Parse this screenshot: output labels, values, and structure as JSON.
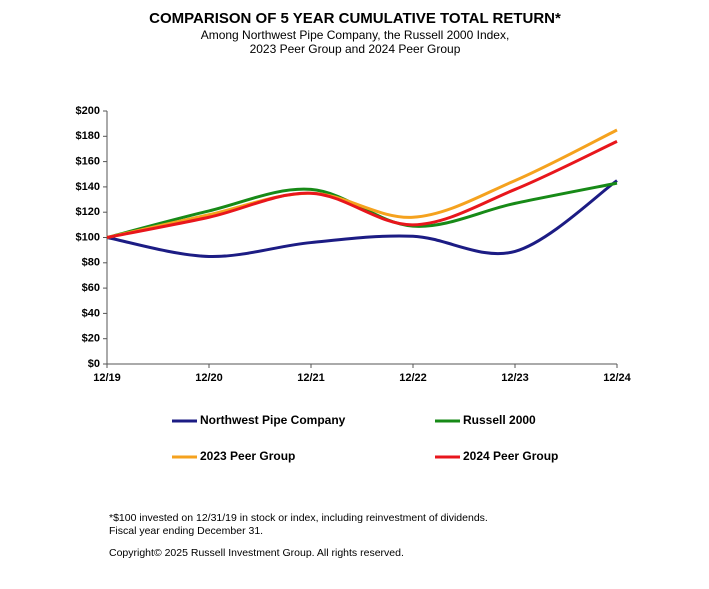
{
  "chart_data": {
    "type": "line",
    "title": "COMPARISON OF 5 YEAR CUMULATIVE TOTAL RETURN*",
    "subtitle": [
      "Among Northwest Pipe Company, the Russell 2000 Index,",
      "2023 Peer Group and 2024 Peer Group"
    ],
    "categories": [
      "12/19",
      "12/20",
      "12/21",
      "12/22",
      "12/23",
      "12/24"
    ],
    "series": [
      {
        "name": "Northwest Pipe Company",
        "color": "#1c1c84",
        "values": [
          100,
          85,
          96,
          101,
          89,
          145
        ]
      },
      {
        "name": "Russell 2000",
        "color": "#178a17",
        "values": [
          100,
          121,
          138,
          109,
          127,
          143
        ]
      },
      {
        "name": "2023 Peer Group",
        "color": "#f5a21e",
        "values": [
          100,
          118,
          135,
          116,
          145,
          185
        ]
      },
      {
        "name": "2024 Peer Group",
        "color": "#e8161c",
        "values": [
          100,
          116,
          135,
          110,
          138,
          176
        ]
      }
    ],
    "ylim": [
      0,
      200
    ],
    "yticks": [
      {
        "value": 0,
        "label": "$0"
      },
      {
        "value": 20,
        "label": "$20"
      },
      {
        "value": 40,
        "label": "$40"
      },
      {
        "value": 60,
        "label": "$60"
      },
      {
        "value": 80,
        "label": "$80"
      },
      {
        "value": 100,
        "label": "$100"
      },
      {
        "value": 120,
        "label": "$120"
      },
      {
        "value": 140,
        "label": "$140"
      },
      {
        "value": 160,
        "label": "$160"
      },
      {
        "value": 180,
        "label": "$180"
      },
      {
        "value": 200,
        "label": "$200"
      }
    ],
    "grid": false,
    "smooth": true,
    "footnotes": [
      "*$100 invested on 12/31/19 in stock or index, including reinvestment of dividends.",
      "Fiscal year ending December 31.",
      "Copyright© 2025 Russell Investment Group. All rights reserved."
    ]
  }
}
